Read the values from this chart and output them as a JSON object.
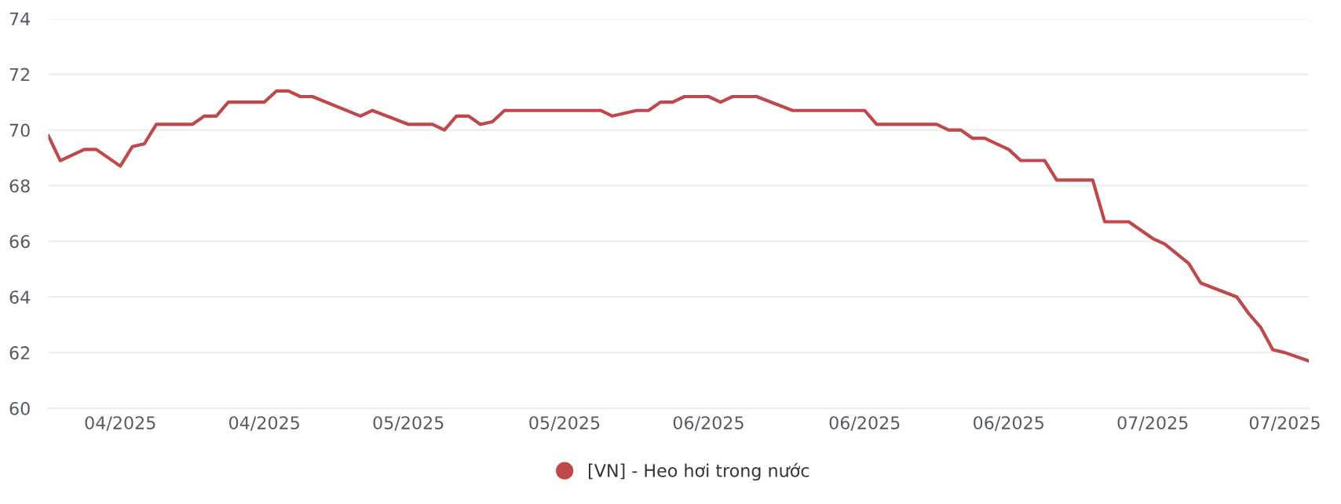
{
  "chart_data": {
    "type": "line",
    "x": [
      "2025-04-10",
      "2025-04-11",
      "2025-04-13",
      "2025-04-14",
      "2025-04-16",
      "2025-04-17",
      "2025-04-18",
      "2025-04-19",
      "2025-04-22",
      "2025-04-23",
      "2025-04-24",
      "2025-04-25",
      "2025-04-28",
      "2025-04-29",
      "2025-04-30",
      "2025-05-01",
      "2025-05-02",
      "2025-05-06",
      "2025-05-07",
      "2025-05-10",
      "2025-05-12",
      "2025-05-13",
      "2025-05-14",
      "2025-05-15",
      "2025-05-16",
      "2025-05-17",
      "2025-05-18",
      "2025-05-26",
      "2025-05-27",
      "2025-05-29",
      "2025-05-30",
      "2025-05-31",
      "2025-06-01",
      "2025-06-02",
      "2025-06-04",
      "2025-06-05",
      "2025-06-06",
      "2025-06-08",
      "2025-06-11",
      "2025-06-17",
      "2025-06-18",
      "2025-06-23",
      "2025-06-24",
      "2025-06-25",
      "2025-06-26",
      "2025-06-27",
      "2025-06-29",
      "2025-06-30",
      "2025-07-02",
      "2025-07-03",
      "2025-07-06",
      "2025-07-07",
      "2025-07-09",
      "2025-07-11",
      "2025-07-12",
      "2025-07-14",
      "2025-07-15",
      "2025-07-18",
      "2025-07-19",
      "2025-07-20",
      "2025-07-21",
      "2025-07-22",
      "2025-07-24"
    ],
    "series": [
      {
        "name": "[VN] - Heo hơi trong nước",
        "color": "#c0484a",
        "values": [
          69.8,
          68.9,
          69.3,
          69.3,
          68.7,
          69.4,
          69.5,
          70.2,
          70.2,
          70.5,
          70.5,
          71.0,
          71.0,
          71.4,
          71.4,
          71.2,
          71.2,
          70.5,
          70.7,
          70.2,
          70.2,
          70.0,
          70.5,
          70.5,
          70.2,
          70.3,
          70.7,
          70.7,
          70.5,
          70.7,
          70.7,
          71.0,
          71.0,
          71.2,
          71.2,
          71.0,
          71.2,
          71.2,
          70.7,
          70.7,
          70.2,
          70.2,
          70.0,
          70.0,
          69.7,
          69.7,
          69.3,
          68.9,
          68.9,
          68.2,
          68.2,
          66.7,
          66.7,
          66.1,
          65.9,
          65.2,
          64.5,
          64.0,
          63.4,
          62.9,
          62.1,
          62.0,
          61.7
        ]
      }
    ],
    "xlim": [
      "2025-04-10",
      "2025-07-24"
    ],
    "xticks": [
      {
        "value": "2025-04-16",
        "label": "04/2025"
      },
      {
        "value": "2025-04-28",
        "label": "04/2025"
      },
      {
        "value": "2025-05-10",
        "label": "05/2025"
      },
      {
        "value": "2025-05-23",
        "label": "05/2025"
      },
      {
        "value": "2025-06-04",
        "label": "06/2025"
      },
      {
        "value": "2025-06-17",
        "label": "06/2025"
      },
      {
        "value": "2025-06-29",
        "label": "06/2025"
      },
      {
        "value": "2025-07-11",
        "label": "07/2025"
      },
      {
        "value": "2025-07-22",
        "label": "07/2025"
      }
    ],
    "ylim": [
      60,
      74
    ],
    "yticks": [
      60,
      62,
      64,
      66,
      68,
      70,
      72,
      74
    ],
    "grid": "y",
    "legend": "bottom",
    "marker": "none",
    "line_style": "solid"
  }
}
